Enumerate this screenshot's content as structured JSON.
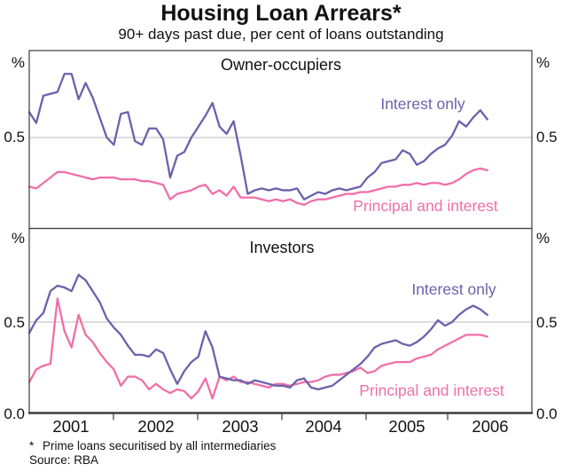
{
  "title": "Housing Loan Arrears*",
  "subtitle": "90+ days past due, per cent of loans outstanding",
  "footnote_marker": "*",
  "footnote_text": "Prime loans securitised by all intermediaries",
  "source": "Source: RBA",
  "colors": {
    "interest_only": "#6A62AB",
    "principal_interest": "#F06FA8",
    "grid": "#bbbbbb",
    "axis": "#3d3d3d",
    "text": "#111111"
  },
  "axes": {
    "unit_label": "%",
    "years": [
      "2001",
      "2002",
      "2003",
      "2004",
      "2005",
      "2006"
    ],
    "top_panel_tick_labels": [
      "0.5"
    ],
    "bottom_panel_tick_labels": [
      "0.5",
      "0.0"
    ]
  },
  "chart_data": [
    {
      "id": "owner-occupiers",
      "type": "line",
      "title": "Owner-occupiers",
      "ylabel": "%",
      "ylim": [
        0,
        1.0
      ],
      "gridlines": [
        0.5
      ],
      "x_frequency": "monthly",
      "x_range": [
        "2001-01",
        "2006-06"
      ],
      "x_tick_years": [
        "2001",
        "2002",
        "2003",
        "2004",
        "2005",
        "2006"
      ],
      "series": [
        {
          "id": "interest-only",
          "name": "Interest only",
          "color": "#6A62AB",
          "values": [
            0.64,
            0.58,
            0.73,
            0.74,
            0.75,
            0.85,
            0.85,
            0.71,
            0.8,
            0.72,
            0.61,
            0.5,
            0.46,
            0.63,
            0.64,
            0.48,
            0.46,
            0.55,
            0.55,
            0.49,
            0.28,
            0.4,
            0.42,
            0.5,
            0.56,
            0.62,
            0.69,
            0.56,
            0.52,
            0.59,
            0.4,
            0.19,
            0.21,
            0.22,
            0.21,
            0.22,
            0.21,
            0.21,
            0.22,
            0.16,
            0.18,
            0.2,
            0.19,
            0.21,
            0.22,
            0.21,
            0.22,
            0.23,
            0.28,
            0.31,
            0.36,
            0.37,
            0.38,
            0.43,
            0.41,
            0.35,
            0.37,
            0.41,
            0.44,
            0.46,
            0.51,
            0.59,
            0.56,
            0.61,
            0.65,
            0.6
          ]
        },
        {
          "id": "principal-and-interest",
          "name": "Principal and interest",
          "color": "#F06FA8",
          "values": [
            0.23,
            0.22,
            0.25,
            0.28,
            0.31,
            0.31,
            0.3,
            0.29,
            0.28,
            0.27,
            0.28,
            0.28,
            0.28,
            0.27,
            0.27,
            0.27,
            0.26,
            0.26,
            0.25,
            0.24,
            0.16,
            0.19,
            0.2,
            0.21,
            0.23,
            0.24,
            0.19,
            0.21,
            0.18,
            0.23,
            0.17,
            0.17,
            0.17,
            0.16,
            0.15,
            0.16,
            0.15,
            0.16,
            0.14,
            0.13,
            0.15,
            0.16,
            0.16,
            0.17,
            0.18,
            0.19,
            0.19,
            0.2,
            0.2,
            0.21,
            0.22,
            0.23,
            0.23,
            0.24,
            0.24,
            0.25,
            0.24,
            0.25,
            0.25,
            0.24,
            0.25,
            0.27,
            0.3,
            0.32,
            0.33,
            0.32
          ]
        }
      ]
    },
    {
      "id": "investors",
      "type": "line",
      "title": "Investors",
      "ylabel": "%",
      "ylim": [
        0,
        1.0
      ],
      "gridlines": [
        0.5
      ],
      "x_frequency": "monthly",
      "x_range": [
        "2001-01",
        "2006-06"
      ],
      "x_tick_years": [
        "2001",
        "2002",
        "2003",
        "2004",
        "2005",
        "2006"
      ],
      "series": [
        {
          "id": "interest-only",
          "name": "Interest only",
          "color": "#6A62AB",
          "values": [
            0.44,
            0.51,
            0.55,
            0.67,
            0.7,
            0.69,
            0.67,
            0.76,
            0.73,
            0.67,
            0.61,
            0.52,
            0.47,
            0.43,
            0.37,
            0.32,
            0.32,
            0.31,
            0.35,
            0.33,
            0.24,
            0.16,
            0.23,
            0.28,
            0.31,
            0.45,
            0.36,
            0.2,
            0.19,
            0.18,
            0.18,
            0.16,
            0.18,
            0.17,
            0.16,
            0.15,
            0.15,
            0.14,
            0.18,
            0.19,
            0.14,
            0.13,
            0.14,
            0.15,
            0.18,
            0.21,
            0.24,
            0.27,
            0.31,
            0.36,
            0.38,
            0.39,
            0.4,
            0.38,
            0.37,
            0.39,
            0.42,
            0.46,
            0.51,
            0.48,
            0.5,
            0.54,
            0.57,
            0.59,
            0.57,
            0.54
          ]
        },
        {
          "id": "principal-and-interest",
          "name": "Principal and interest",
          "color": "#F06FA8",
          "values": [
            0.17,
            0.24,
            0.26,
            0.27,
            0.63,
            0.45,
            0.36,
            0.54,
            0.43,
            0.39,
            0.33,
            0.28,
            0.24,
            0.15,
            0.2,
            0.2,
            0.18,
            0.13,
            0.16,
            0.13,
            0.11,
            0.13,
            0.12,
            0.08,
            0.12,
            0.19,
            0.08,
            0.2,
            0.18,
            0.2,
            0.17,
            0.17,
            0.16,
            0.15,
            0.14,
            0.16,
            0.16,
            0.15,
            0.16,
            0.17,
            0.17,
            0.18,
            0.2,
            0.21,
            0.21,
            0.22,
            0.23,
            0.25,
            0.22,
            0.23,
            0.26,
            0.27,
            0.28,
            0.28,
            0.28,
            0.3,
            0.31,
            0.32,
            0.35,
            0.37,
            0.39,
            0.41,
            0.43,
            0.43,
            0.43,
            0.42
          ]
        }
      ]
    }
  ]
}
